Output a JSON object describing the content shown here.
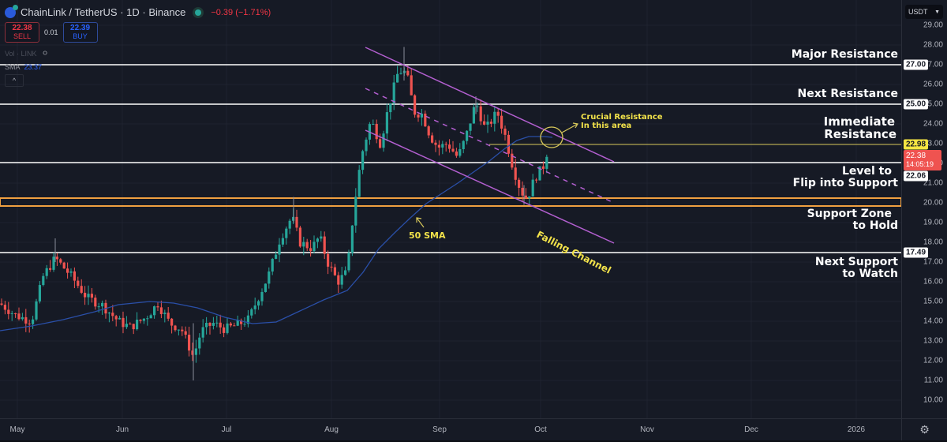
{
  "header": {
    "symbol": "ChainLink / TetherUS · 1D · Binance",
    "change": "−0.39 (−1.71%)",
    "sell_price": "22.38",
    "sell_label": "SELL",
    "spread": "0.01",
    "buy_price": "22.39",
    "buy_label": "BUY",
    "volume_indicator": "Vol · LINK",
    "sma_label": "SMA",
    "sma_value": "23.37",
    "collapse_glyph": "^"
  },
  "price_axis": {
    "currency": "USDT",
    "ticks": [
      "29.00",
      "28.00",
      "27.00",
      "26.00",
      "25.00",
      "24.00",
      "23.00",
      "22.00",
      "21.00",
      "20.00",
      "19.00",
      "18.00",
      "17.00",
      "16.00",
      "15.00",
      "14.00",
      "13.00",
      "12.00",
      "11.00",
      "10.00"
    ],
    "labels": {
      "major_resistance": "27.00",
      "next_resistance": "25.00",
      "immediate_resistance": "22.98",
      "current_price": "22.38",
      "countdown": "14:05:19",
      "flip_level": "22.06",
      "next_support": "17.49"
    }
  },
  "time_axis": {
    "ticks": [
      "May",
      "Jun",
      "Jul",
      "Aug",
      "Sep",
      "Oct",
      "Nov",
      "Dec",
      "2026"
    ]
  },
  "annotations": {
    "major_resistance": "Major Resistance",
    "next_resistance": "Next Resistance",
    "immediate_resistance_1": "Immediate",
    "immediate_resistance_2": "Resistance",
    "flip_1": "Level to",
    "flip_2": "Flip into Support",
    "support_zone_1": "Support Zone",
    "support_zone_2": "to Hold",
    "next_support_1": "Next Support",
    "next_support_2": "to Watch",
    "crucial_1": "Crucial Resistance",
    "crucial_2": "In this area",
    "sma_note": "50 SMA",
    "channel_note": "Falling Channel"
  },
  "colors": {
    "background": "#161a25",
    "up": "#26a69a",
    "down": "#ef5350",
    "sma": "#2a4fa8",
    "channel": "#b35fd0",
    "zone": "#f0a040",
    "immediate": "#d8c85a",
    "level": "#ffffff"
  },
  "chart_data": {
    "type": "candlestick",
    "title": "ChainLink / TetherUS · 1D · Binance",
    "xlabel": "",
    "ylabel": "USDT",
    "ylim": [
      9.5,
      29.5
    ],
    "x_ticks": [
      "May",
      "Jun",
      "Jul",
      "Aug",
      "Sep",
      "Oct",
      "Nov",
      "Dec",
      "2026"
    ],
    "horizontal_levels": [
      {
        "name": "Major Resistance",
        "value": 27.0
      },
      {
        "name": "Next Resistance",
        "value": 25.0
      },
      {
        "name": "Immediate Resistance",
        "value": 22.98
      },
      {
        "name": "Level to Flip into Support",
        "value": 22.06
      },
      {
        "name": "Support Zone to Hold",
        "range": [
          19.85,
          20.25
        ]
      },
      {
        "name": "Next Support to Watch",
        "value": 17.49
      }
    ],
    "last_price": 22.38,
    "sma_period": 50,
    "sma_last": 23.37,
    "approx_price_path": {
      "x": [
        "May 1",
        "May 15",
        "Jun 1",
        "Jun 15",
        "Jul 1",
        "Jul 15",
        "Jul 25",
        "Aug 1",
        "Aug 10",
        "Aug 22",
        "Sep 1",
        "Sep 12",
        "Sep 25",
        "Oct 3"
      ],
      "close": [
        14.8,
        16.5,
        14.3,
        15.2,
        14.0,
        13.6,
        18.5,
        16.0,
        23.0,
        26.5,
        22.5,
        25.2,
        20.3,
        22.4
      ]
    },
    "sma_path": {
      "x": [
        "May 1",
        "Jun 1",
        "Jun 15",
        "Jul 1",
        "Jul 15",
        "Aug 1",
        "Aug 15",
        "Sep 1",
        "Sep 15",
        "Oct 1",
        "Oct 5"
      ],
      "value": [
        13.9,
        14.5,
        15.0,
        14.9,
        14.2,
        15.4,
        18.4,
        20.9,
        22.4,
        23.4,
        23.37
      ]
    },
    "channel": {
      "upper": {
        "from": [
          "Aug 10",
          27.9
        ],
        "to": [
          "Oct 18",
          22.2
        ]
      },
      "mid": {
        "from": [
          "Aug 10",
          25.6
        ],
        "to": [
          "Oct 18",
          19.9
        ]
      },
      "lower": {
        "from": [
          "Aug 10",
          23.5
        ],
        "to": [
          "Oct 18",
          17.9
        ]
      }
    }
  }
}
